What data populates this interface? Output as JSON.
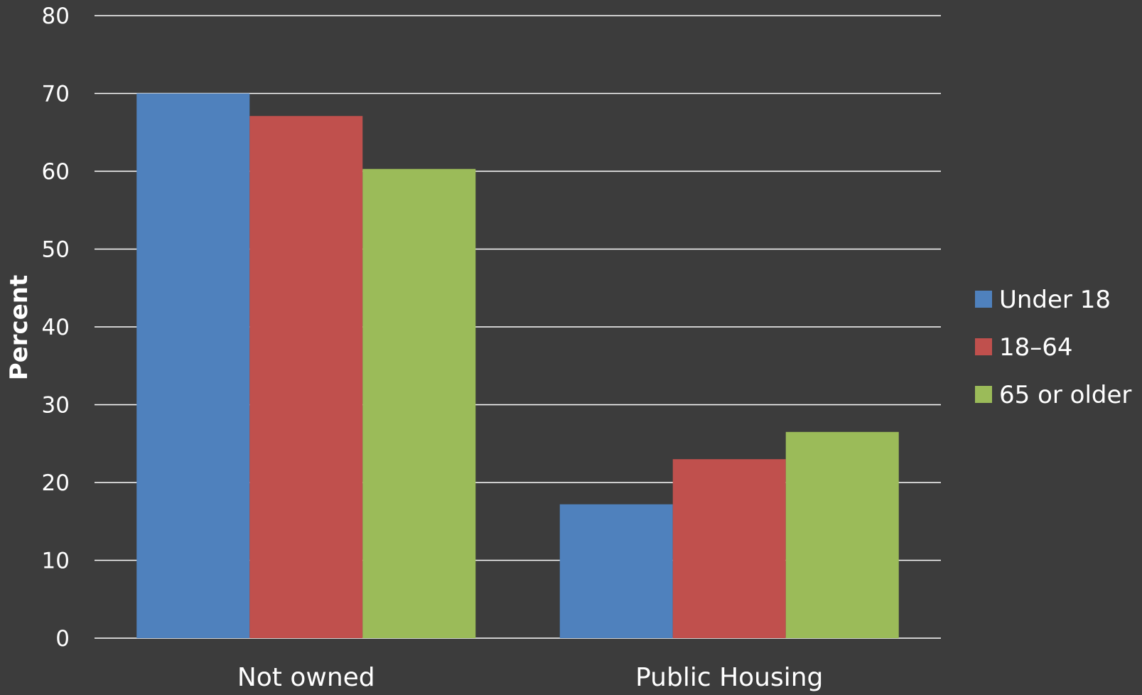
{
  "chart_data": {
    "type": "bar",
    "title": "",
    "xlabel": "",
    "ylabel": "Percent",
    "categories": [
      "Not owned",
      "Public Housing"
    ],
    "series": [
      {
        "name": "Under 18",
        "color": "#4f81bd",
        "values": [
          70,
          17.2
        ]
      },
      {
        "name": "18–64",
        "color": "#c0504d",
        "values": [
          67.1,
          23
        ]
      },
      {
        "name": "65 or older",
        "color": "#9bbb59",
        "values": [
          60.3,
          26.5
        ]
      }
    ],
    "ylim": [
      0,
      80
    ],
    "yticks": [
      0,
      10,
      20,
      30,
      40,
      50,
      60,
      70,
      80
    ],
    "grid": true,
    "legend_position": "right"
  }
}
